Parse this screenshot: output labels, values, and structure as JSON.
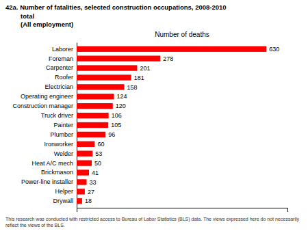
{
  "chart_data": {
    "type": "bar",
    "orientation": "horizontal",
    "title": "42a. Number of fatalities, selected construction occupations, 2008-2010",
    "subtitle": [
      "total",
      "(All employment)"
    ],
    "xlabel": "Number of deaths",
    "categories": [
      "Drywall",
      "Helper",
      "Power-line installer",
      "Brickmason",
      "Heat A/C mech",
      "Welder",
      "Ironworker",
      "Plumber",
      "Painter",
      "Truck driver",
      "Construction manager",
      "Operating engineer",
      "Electrician",
      "Roofer",
      "Carpenter",
      "Foreman",
      "Laborer"
    ],
    "values": [
      18,
      27,
      33,
      41,
      50,
      53,
      60,
      96,
      105,
      106,
      120,
      124,
      158,
      181,
      201,
      278,
      630
    ],
    "color": "#ff0000",
    "xlim": [
      0,
      700
    ],
    "xticks": [],
    "tick_labels": "y",
    "data_labels": true,
    "annotations": [
      "This research was conducted with restricted access to Bureau of Labor Statistics (BLS) data.  The views expressed here do not necessarily reflect the views of the BLS."
    ]
  }
}
